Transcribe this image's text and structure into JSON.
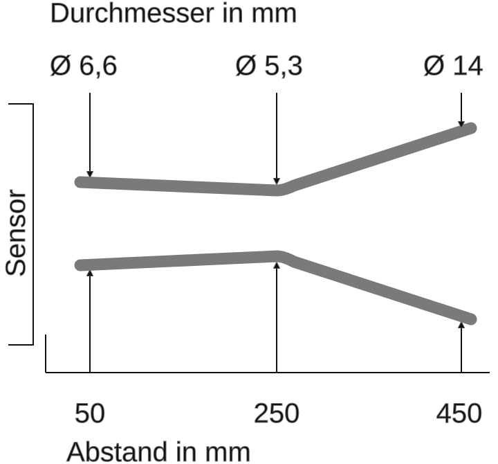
{
  "title": "Durchmesser in mm",
  "side_label": "Sensor",
  "x_axis_label": "Abstand in mm",
  "beam_color": "#7a7a7a",
  "ink_color": "#111111",
  "diagram_data": {
    "distances_mm": [
      50,
      250,
      450
    ],
    "diameters_mm": [
      6.6,
      5.3,
      14
    ],
    "tick_labels": [
      "50",
      "250",
      "450"
    ],
    "diameter_labels": [
      "Ø 6,6",
      "Ø 5,3",
      "Ø 14"
    ]
  }
}
